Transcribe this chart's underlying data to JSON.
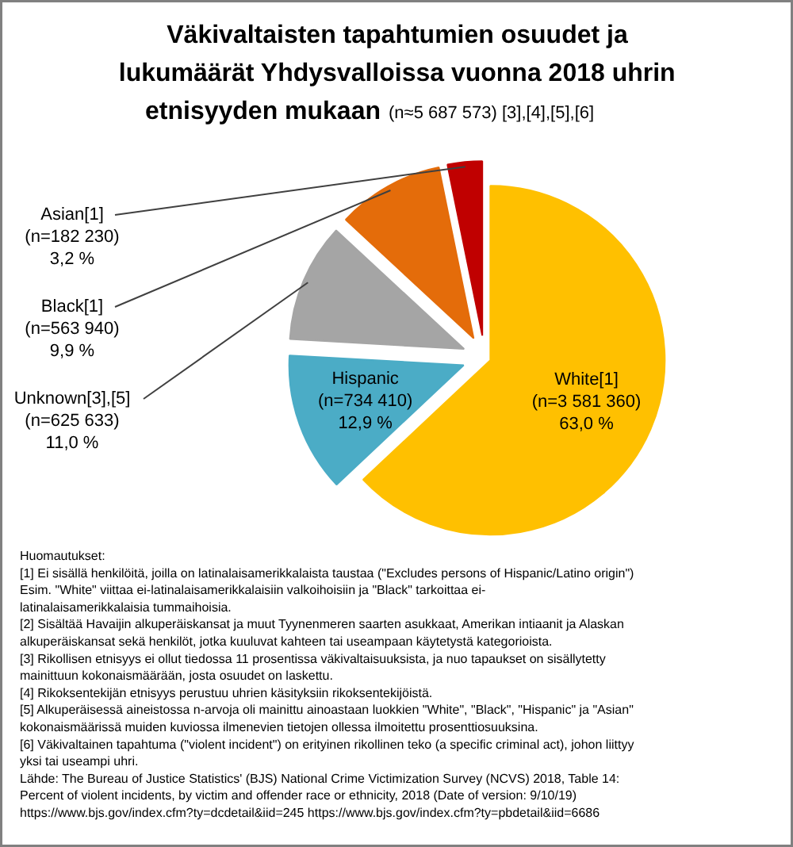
{
  "chart_data": {
    "type": "pie",
    "title": "Väkivaltaisten tapahtumien osuudet ja lukumäärät Yhdysvalloissa vuonna 2018 uhrin etnisyyden mukaan",
    "subtitle": "(n≈5 687 573) [3],[4],[5],[6]",
    "categories": [
      "White[1]",
      "Hispanic",
      "Unknown[3],[5]",
      "Black[1]",
      "Asian[1]"
    ],
    "values": [
      63.0,
      12.9,
      11.0,
      9.9,
      3.2
    ],
    "value_labels": [
      "(n=3 581 360)\n63,0 %",
      "(n=734 410)\n12,9 %",
      "(n=625 633)\n11,0 %",
      "(n=563 940)\n9,9 %",
      "(n=182 230)\n3,2 %"
    ],
    "colors": [
      "#ffc000",
      "#4bacc6",
      "#a5a5a5",
      "#e46c0a",
      "#c00000"
    ],
    "legend": false,
    "annotations": [
      "Huomautukset:",
      "[1] Ei sisällä henkilöitä, joilla on latinalaisamerikkalaista taustaa (\"Excludes persons of Hispanic/Latino origin\")\nEsim. \"White\" viittaa ei-latinalaisamerikkalaisiin valkoihoisiin ja \"Black\" tarkoittaa ei-latinalaisamerikkalaisia tummaihoisia.",
      "[2] Sisältää Havaijin alkuperäiskansat ja muut Tyynenmeren saarten asukkaat, Amerikan intiaanit ja Alaskan alkuperäiskansat sekä henkilöt, jotka kuuluvat kahteen tai useampaan käytetystä kategorioista.",
      "[3] Rikollisen etnisyys ei ollut tiedossa 11 prosentissa väkivaltaisuuksista, ja nuo tapaukset on sisällytetty mainittuun kokonaismäärään, josta osuudet on laskettu.",
      "[4] Rikoksentekijän etnisyys perustuu uhrien käsityksiin rikoksentekijöistä.",
      "[5] Alkuperäisessä aineistossa n-arvoja oli mainittu ainoastaan luokkien \"White\", \"Black\", \"Hispanic\" ja \"Asian\" kokonaismäärissä muiden kuviossa ilmenevien tietojen ollessa ilmoitettu prosenttiosuuksina.",
      "[6] Väkivaltainen tapahtuma (\"violent incident\") on erityinen rikollinen teko (a specific criminal act), johon liittyy yksi tai useampi uhri.",
      "Lähde: The Bureau of Justice Statistics' (BJS) National Crime Victimization Survey (NCVS) 2018, Table 14:\nPercent of violent incidents, by victim and offender race or ethnicity, 2018 (Date of version: 9/10/19)\nhttps://www.bjs.gov/index.cfm?ty=dcdetail&iid=245        https://www.bjs.gov/index.cfm?ty=pbdetail&iid=6686"
    ]
  }
}
